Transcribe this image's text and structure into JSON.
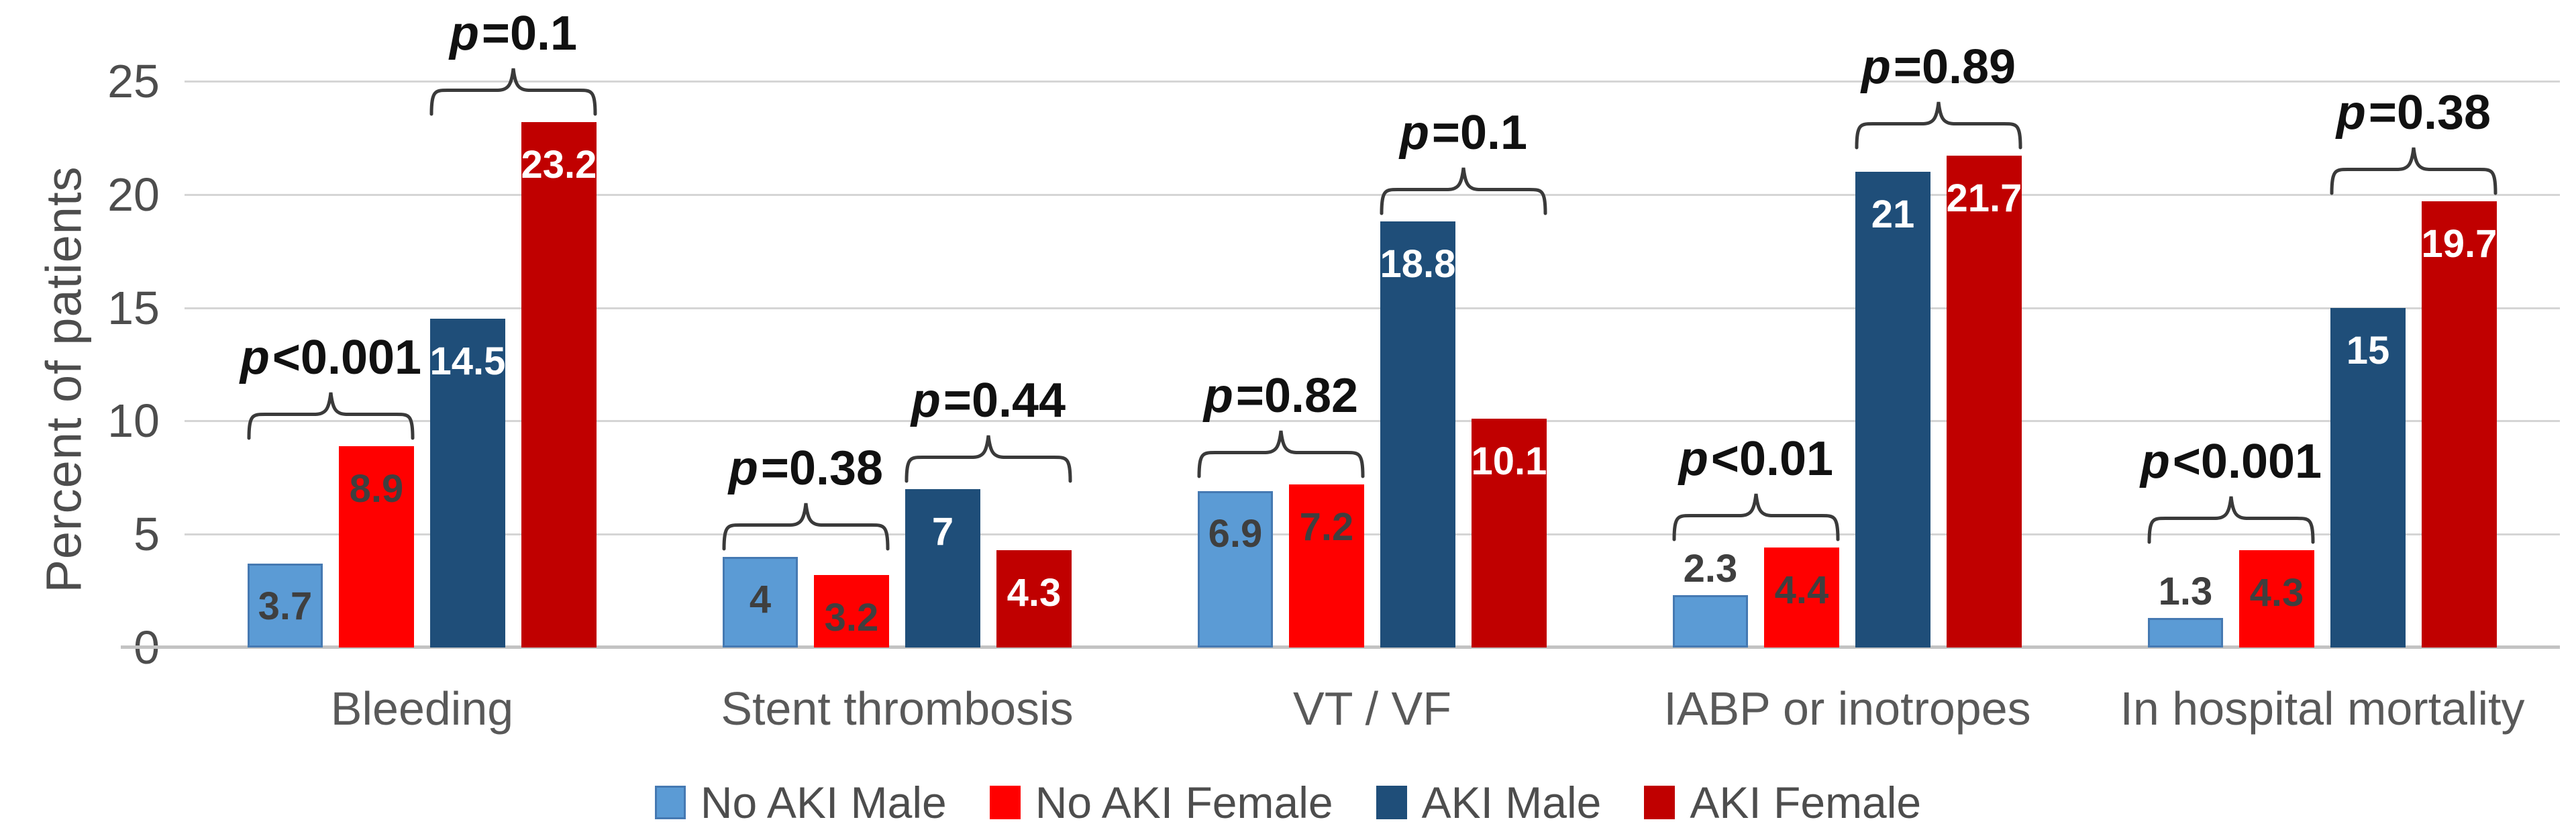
{
  "chart_data": {
    "type": "bar",
    "title": "",
    "xlabel": "",
    "ylabel": "Percent of patients",
    "ylim": [
      0,
      25
    ],
    "yticks": [
      0,
      5,
      10,
      15,
      20,
      25
    ],
    "grid": "horizontal",
    "legend_position": "bottom",
    "categories": [
      "Bleeding",
      "Stent thrombosis",
      "VT / VF",
      "IABP or inotropes",
      "In hospital mortality"
    ],
    "series": [
      {
        "name": "No AKI Male",
        "color": "#5B9BD5",
        "border_color": "#4579B2",
        "label_color": "#3f3f3f",
        "values": [
          3.7,
          4,
          6.9,
          2.3,
          1.3
        ]
      },
      {
        "name": "No AKI Female",
        "color": "#FF0000",
        "border_color": "#FF0000",
        "label_color": "#3f3f3f",
        "values": [
          8.9,
          3.2,
          7.2,
          4.4,
          4.3
        ]
      },
      {
        "name": "AKI Male",
        "color": "#1F4E79",
        "border_color": "#1F4E79",
        "label_color": "#ffffff",
        "values": [
          14.5,
          7,
          18.8,
          21,
          15
        ]
      },
      {
        "name": "AKI Female",
        "color": "#C00000",
        "border_color": "#C00000",
        "label_color": "#ffffff",
        "values": [
          23.2,
          4.3,
          10.1,
          21.7,
          19.7
        ]
      }
    ],
    "p_annotations": [
      {
        "category": "Bleeding",
        "no_aki_pair": "p<0.001",
        "aki_pair": "p=0.1"
      },
      {
        "category": "Stent thrombosis",
        "no_aki_pair": "p=0.38",
        "aki_pair": "p=0.44"
      },
      {
        "category": "VT / VF",
        "no_aki_pair": "p=0.82",
        "aki_pair": "p=0.1"
      },
      {
        "category": "IABP or inotropes",
        "no_aki_pair": "p<0.01",
        "aki_pair": "p=0.89"
      },
      {
        "category": "In hospital mortality",
        "no_aki_pair": "p<0.001",
        "aki_pair": "p=0.38"
      }
    ],
    "colors": {
      "gridline": "#d5d5d5",
      "axis_line": "#c3c3c3",
      "tick_text": "#4d4d4d",
      "category_text": "#595959",
      "p_text": "#111111",
      "bracket": "#3a3a3a"
    }
  }
}
